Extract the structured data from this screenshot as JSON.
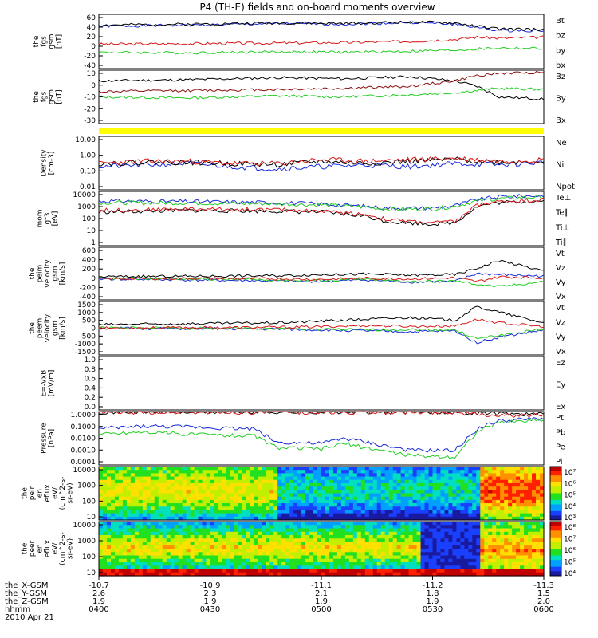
{
  "title": "P4 (TH-E) fields and on-board moments overview",
  "chart_data": [
    {
      "type": "line",
      "ylabel": [
        "the",
        "fgs",
        "gsm",
        "[nT]"
      ],
      "yticks": [
        "60",
        "40",
        "20",
        "0",
        "-20",
        "-40"
      ],
      "ylim": [
        -40,
        60
      ],
      "legend": [
        {
          "name": "Bt",
          "color": "#000000"
        },
        {
          "name": "bz",
          "color": "#d81818"
        },
        {
          "name": "by",
          "color": "#22cc22"
        },
        {
          "name": "bx",
          "color": "#1a2ad8"
        }
      ],
      "series": [
        {
          "name": "bx",
          "color": "#1a2ad8",
          "x": [
            0,
            0.2,
            0.4,
            0.55,
            0.7,
            0.8,
            0.85,
            0.9,
            1
          ],
          "values": [
            38,
            40,
            43,
            42,
            45,
            42,
            36,
            30,
            30
          ]
        },
        {
          "name": "Bt",
          "color": "#000000",
          "x": [
            0,
            0.2,
            0.4,
            0.55,
            0.7,
            0.8,
            0.85,
            0.9,
            1
          ],
          "values": [
            40,
            42,
            44,
            43,
            46,
            44,
            38,
            33,
            32
          ]
        },
        {
          "name": "bz",
          "color": "#d81818",
          "x": [
            0,
            0.2,
            0.4,
            0.55,
            0.7,
            0.8,
            0.85,
            0.9,
            1
          ],
          "values": [
            5,
            6,
            7,
            8,
            10,
            14,
            18,
            16,
            18
          ]
        },
        {
          "name": "by",
          "color": "#22cc22",
          "x": [
            0,
            0.2,
            0.4,
            0.55,
            0.7,
            0.8,
            0.85,
            0.9,
            1
          ],
          "values": [
            -10,
            -11,
            -9,
            -10,
            -8,
            -6,
            -4,
            -2,
            -3
          ]
        }
      ]
    },
    {
      "type": "line",
      "ylabel": [
        "the",
        "fgs",
        "gsm",
        "[nT]"
      ],
      "yticks": [
        "10",
        "0",
        "-10",
        "-20",
        "-30"
      ],
      "ylim": [
        -35,
        15
      ],
      "legend": [
        {
          "name": "Bz",
          "color": "#8b1010"
        },
        {
          "name": "By",
          "color": "#22cc22"
        },
        {
          "name": "Bx",
          "color": "#000000"
        }
      ],
      "series": [
        {
          "name": "Bx",
          "color": "#000000",
          "x": [
            0,
            0.2,
            0.4,
            0.55,
            0.7,
            0.8,
            0.85,
            0.9,
            1
          ],
          "values": [
            5,
            6,
            8,
            7,
            9,
            5,
            0,
            -10,
            -12
          ]
        },
        {
          "name": "Bz",
          "color": "#8b1010",
          "x": [
            0,
            0.2,
            0.4,
            0.55,
            0.7,
            0.8,
            0.85,
            0.9,
            1
          ],
          "values": [
            -5,
            -4,
            -3,
            -2,
            0,
            5,
            10,
            12,
            13
          ]
        },
        {
          "name": "By",
          "color": "#22cc22",
          "x": [
            0,
            0.2,
            0.4,
            0.55,
            0.7,
            0.8,
            0.85,
            0.9,
            1
          ],
          "values": [
            -10,
            -11,
            -9,
            -10,
            -8,
            -6,
            -4,
            -2,
            -3
          ]
        }
      ]
    },
    {
      "type": "line",
      "scale": "log",
      "ylabel": [
        "Density",
        "[cm-3]"
      ],
      "yticks": [
        "10.00",
        "1.00",
        "0.10",
        "0.01"
      ],
      "ylim": [
        0.01,
        10
      ],
      "legend": [
        {
          "name": "Ne",
          "color": "#d81818"
        },
        {
          "name": "Ni",
          "color": "#000000"
        },
        {
          "name": "Npot",
          "color": "#1a2ad8"
        }
      ],
      "series": [
        {
          "name": "Npot",
          "color": "#1a2ad8",
          "x": [
            0,
            0.1,
            0.2,
            0.3,
            0.4,
            0.5,
            0.6,
            0.7,
            0.8,
            0.9,
            1
          ],
          "values": [
            0.2,
            0.25,
            0.3,
            0.2,
            0.15,
            0.2,
            0.25,
            0.2,
            0.3,
            0.25,
            0.35
          ]
        },
        {
          "name": "Ni",
          "color": "#000000",
          "x": [
            0,
            0.1,
            0.2,
            0.3,
            0.4,
            0.5,
            0.6,
            0.7,
            0.8,
            0.9,
            1
          ],
          "values": [
            0.3,
            0.35,
            0.35,
            0.3,
            0.25,
            0.4,
            0.3,
            0.4,
            0.5,
            0.35,
            0.4
          ]
        },
        {
          "name": "Ne",
          "color": "#d81818",
          "x": [
            0,
            0.1,
            0.2,
            0.3,
            0.4,
            0.5,
            0.6,
            0.7,
            0.8,
            0.9,
            1
          ],
          "values": [
            0.3,
            0.4,
            0.4,
            0.3,
            0.3,
            0.5,
            0.4,
            0.5,
            0.6,
            0.4,
            0.5
          ]
        }
      ]
    },
    {
      "type": "line",
      "scale": "log",
      "ylabel": [
        "mom",
        "gt3",
        "[eV]"
      ],
      "yticks": [
        "10000",
        "1000",
        "100",
        "10",
        "1"
      ],
      "ylim": [
        1,
        10000
      ],
      "legend": [
        {
          "name": "Te⊥",
          "color": "#d81818"
        },
        {
          "name": "Te∥",
          "color": "#000000"
        },
        {
          "name": "Ti⊥",
          "color": "#1a2ad8"
        },
        {
          "name": "Ti∥",
          "color": "#22cc22"
        }
      ],
      "series": [
        {
          "name": "Ti⊥",
          "color": "#1a2ad8",
          "x": [
            0,
            0.2,
            0.4,
            0.5,
            0.6,
            0.65,
            0.75,
            0.8,
            0.85,
            0.9,
            1
          ],
          "values": [
            2000,
            1800,
            1500,
            1200,
            800,
            600,
            600,
            900,
            2500,
            4000,
            5000
          ]
        },
        {
          "name": "Ti∥",
          "color": "#22cc22",
          "x": [
            0,
            0.2,
            0.4,
            0.5,
            0.6,
            0.65,
            0.75,
            0.8,
            0.85,
            0.9,
            1
          ],
          "values": [
            1500,
            1400,
            1200,
            1000,
            700,
            500,
            500,
            800,
            2000,
            3000,
            4000
          ]
        },
        {
          "name": "Te∥",
          "color": "#000000",
          "x": [
            0,
            0.2,
            0.4,
            0.5,
            0.6,
            0.65,
            0.75,
            0.8,
            0.85,
            0.9,
            1
          ],
          "values": [
            300,
            400,
            350,
            300,
            150,
            60,
            40,
            50,
            800,
            1500,
            2000
          ]
        },
        {
          "name": "Te⊥",
          "color": "#d81818",
          "x": [
            0,
            0.2,
            0.4,
            0.5,
            0.6,
            0.65,
            0.75,
            0.8,
            0.85,
            0.9,
            1
          ],
          "values": [
            400,
            500,
            450,
            350,
            200,
            80,
            50,
            60,
            1000,
            1800,
            2500
          ]
        }
      ]
    },
    {
      "type": "line",
      "ylabel": [
        "the",
        "peim",
        "velocity",
        "gsm",
        "[km/s]"
      ],
      "yticks": [
        "600",
        "400",
        "200",
        "0",
        "-200",
        "-400"
      ],
      "ylim": [
        -400,
        600
      ],
      "legend": [
        {
          "name": "Vt",
          "color": "#000000"
        },
        {
          "name": "Vz",
          "color": "#d81818"
        },
        {
          "name": "Vy",
          "color": "#22cc22"
        },
        {
          "name": "Vx",
          "color": "#1a2ad8"
        }
      ],
      "series": [
        {
          "name": "Vx",
          "color": "#1a2ad8",
          "x": [
            0,
            0.2,
            0.4,
            0.5,
            0.6,
            0.7,
            0.8,
            0.85,
            0.9,
            1
          ],
          "values": [
            0,
            -20,
            -40,
            -50,
            -20,
            -60,
            -50,
            100,
            80,
            50
          ]
        },
        {
          "name": "Vy",
          "color": "#22cc22",
          "x": [
            0,
            0.2,
            0.4,
            0.5,
            0.6,
            0.7,
            0.8,
            0.85,
            0.9,
            1
          ],
          "values": [
            10,
            0,
            -20,
            -30,
            -10,
            -50,
            -40,
            -100,
            -150,
            -50
          ]
        },
        {
          "name": "Vz",
          "color": "#d81818",
          "x": [
            0,
            0.2,
            0.4,
            0.5,
            0.6,
            0.7,
            0.8,
            0.85,
            0.9,
            1
          ],
          "values": [
            0,
            10,
            0,
            -10,
            10,
            0,
            20,
            -50,
            40,
            20
          ]
        },
        {
          "name": "Vt",
          "color": "#000000",
          "x": [
            0,
            0.2,
            0.4,
            0.5,
            0.6,
            0.7,
            0.8,
            0.85,
            0.9,
            1
          ],
          "values": [
            40,
            50,
            60,
            80,
            90,
            70,
            80,
            200,
            350,
            150
          ]
        }
      ]
    },
    {
      "type": "line",
      "ylabel": [
        "the",
        "peem",
        "velocity",
        "gsm",
        "[km/s]"
      ],
      "yticks": [
        "1500",
        "1000",
        "500",
        "0",
        "-500",
        "-1000",
        "-1500"
      ],
      "ylim": [
        -1500,
        1500
      ],
      "legend": [
        {
          "name": "Vt",
          "color": "#000000"
        },
        {
          "name": "Vz",
          "color": "#d81818"
        },
        {
          "name": "Vy",
          "color": "#22cc22"
        },
        {
          "name": "Vx",
          "color": "#1a2ad8"
        }
      ],
      "series": [
        {
          "name": "Vx",
          "color": "#1a2ad8",
          "x": [
            0,
            0.2,
            0.4,
            0.5,
            0.6,
            0.7,
            0.8,
            0.85,
            0.9,
            1
          ],
          "values": [
            0,
            -30,
            -50,
            -100,
            -150,
            -200,
            -150,
            -800,
            -500,
            -100
          ]
        },
        {
          "name": "Vy",
          "color": "#22cc22",
          "x": [
            0,
            0.2,
            0.4,
            0.5,
            0.6,
            0.7,
            0.8,
            0.85,
            0.9,
            1
          ],
          "values": [
            20,
            0,
            -30,
            -60,
            -100,
            -80,
            -100,
            -600,
            -400,
            -50
          ]
        },
        {
          "name": "Vz",
          "color": "#d81818",
          "x": [
            0,
            0.2,
            0.4,
            0.5,
            0.6,
            0.7,
            0.8,
            0.85,
            0.9,
            1
          ],
          "values": [
            10,
            30,
            50,
            80,
            150,
            100,
            120,
            500,
            300,
            80
          ]
        },
        {
          "name": "Vt",
          "color": "#000000",
          "x": [
            0,
            0.2,
            0.4,
            0.5,
            0.6,
            0.7,
            0.8,
            0.85,
            0.9,
            1
          ],
          "values": [
            200,
            250,
            300,
            400,
            500,
            600,
            450,
            1200,
            900,
            300
          ]
        }
      ]
    },
    {
      "type": "line",
      "ylabel": [
        "E=-VxB",
        "[mV/m]"
      ],
      "yticks": [
        "1.0",
        "0.8",
        "0.6",
        "0.4",
        "0.2",
        "0.0"
      ],
      "ylim": [
        0,
        1
      ],
      "legend": [
        {
          "name": "Ez",
          "color": "#d81818"
        },
        {
          "name": "Ey",
          "color": "#22cc22"
        },
        {
          "name": "Ex",
          "color": "#1a2ad8"
        }
      ],
      "series": []
    },
    {
      "type": "line",
      "scale": "log",
      "ylabel": [
        "Pressure",
        "[nPa]"
      ],
      "yticks": [
        "1.0000",
        "0.1000",
        "0.0100",
        "0.0010",
        "0.0001"
      ],
      "ylim": [
        0.0001,
        1
      ],
      "legend": [
        {
          "name": "Pt",
          "color": "#000000"
        },
        {
          "name": "Pb",
          "color": "#d81818"
        },
        {
          "name": "Pe",
          "color": "#22cc22"
        },
        {
          "name": "Pi",
          "color": "#1a2ad8"
        }
      ],
      "series": [
        {
          "name": "Pt",
          "color": "#000000",
          "x": [
            0,
            0.2,
            0.4,
            0.6,
            0.8,
            0.85,
            0.9,
            1
          ],
          "values": [
            0.9,
            0.9,
            0.9,
            0.9,
            0.9,
            0.8,
            0.7,
            0.6
          ]
        },
        {
          "name": "Pb",
          "color": "#d81818",
          "x": [
            0,
            0.2,
            0.4,
            0.6,
            0.8,
            0.85,
            0.9,
            1
          ],
          "values": [
            0.85,
            0.85,
            0.85,
            0.85,
            0.85,
            0.6,
            0.5,
            0.5
          ]
        },
        {
          "name": "Pi",
          "color": "#1a2ad8",
          "x": [
            0,
            0.1,
            0.2,
            0.35,
            0.4,
            0.5,
            0.55,
            0.6,
            0.7,
            0.8,
            0.85,
            0.9,
            1
          ],
          "values": [
            0.05,
            0.08,
            0.07,
            0.05,
            0.005,
            0.004,
            0.01,
            0.005,
            0.0012,
            0.0012,
            0.05,
            0.2,
            0.3
          ]
        },
        {
          "name": "Pe",
          "color": "#22cc22",
          "x": [
            0,
            0.1,
            0.2,
            0.35,
            0.4,
            0.5,
            0.55,
            0.6,
            0.7,
            0.8,
            0.85,
            0.9,
            1
          ],
          "values": [
            0.02,
            0.03,
            0.02,
            0.015,
            0.002,
            0.0015,
            0.004,
            0.002,
            0.0005,
            0.0004,
            0.03,
            0.15,
            0.25
          ]
        }
      ]
    },
    {
      "type": "heatmap",
      "ylabel": [
        "the",
        "peir",
        "en",
        "eflux",
        "eV/",
        "(cm^2-s-",
        "sr-eV)"
      ],
      "yticks": [
        "10000",
        "1000",
        "100",
        "10"
      ],
      "colorbar": [
        "10⁷",
        "10⁶",
        "10⁵",
        "10⁴",
        "10³"
      ]
    },
    {
      "type": "heatmap",
      "ylabel": [
        "the",
        "peer",
        "en",
        "eflux",
        "eV/",
        "(cm^2-s-",
        "sr-eV)"
      ],
      "yticks": [
        "10000",
        "1000",
        "100",
        "10"
      ],
      "colorbar": [
        "10⁸",
        "10⁷",
        "10⁶",
        "10⁵",
        "10⁴"
      ]
    }
  ],
  "bottom": {
    "rows": [
      {
        "label": "the_X-GSM",
        "values": [
          "-10.7",
          "-10.9",
          "-11.1",
          "-11.2",
          "-11.3"
        ]
      },
      {
        "label": "the_Y-GSM",
        "values": [
          "2.6",
          "2.3",
          "2.1",
          "1.8",
          "1.5"
        ]
      },
      {
        "label": "the_Z-GSM",
        "values": [
          "1.9",
          "1.9",
          "1.9",
          "1.9",
          "2.0"
        ]
      },
      {
        "label": "hhmm",
        "values": [
          "0400",
          "0430",
          "0500",
          "0530",
          "0600"
        ]
      }
    ],
    "date": "2010 Apr 21"
  }
}
